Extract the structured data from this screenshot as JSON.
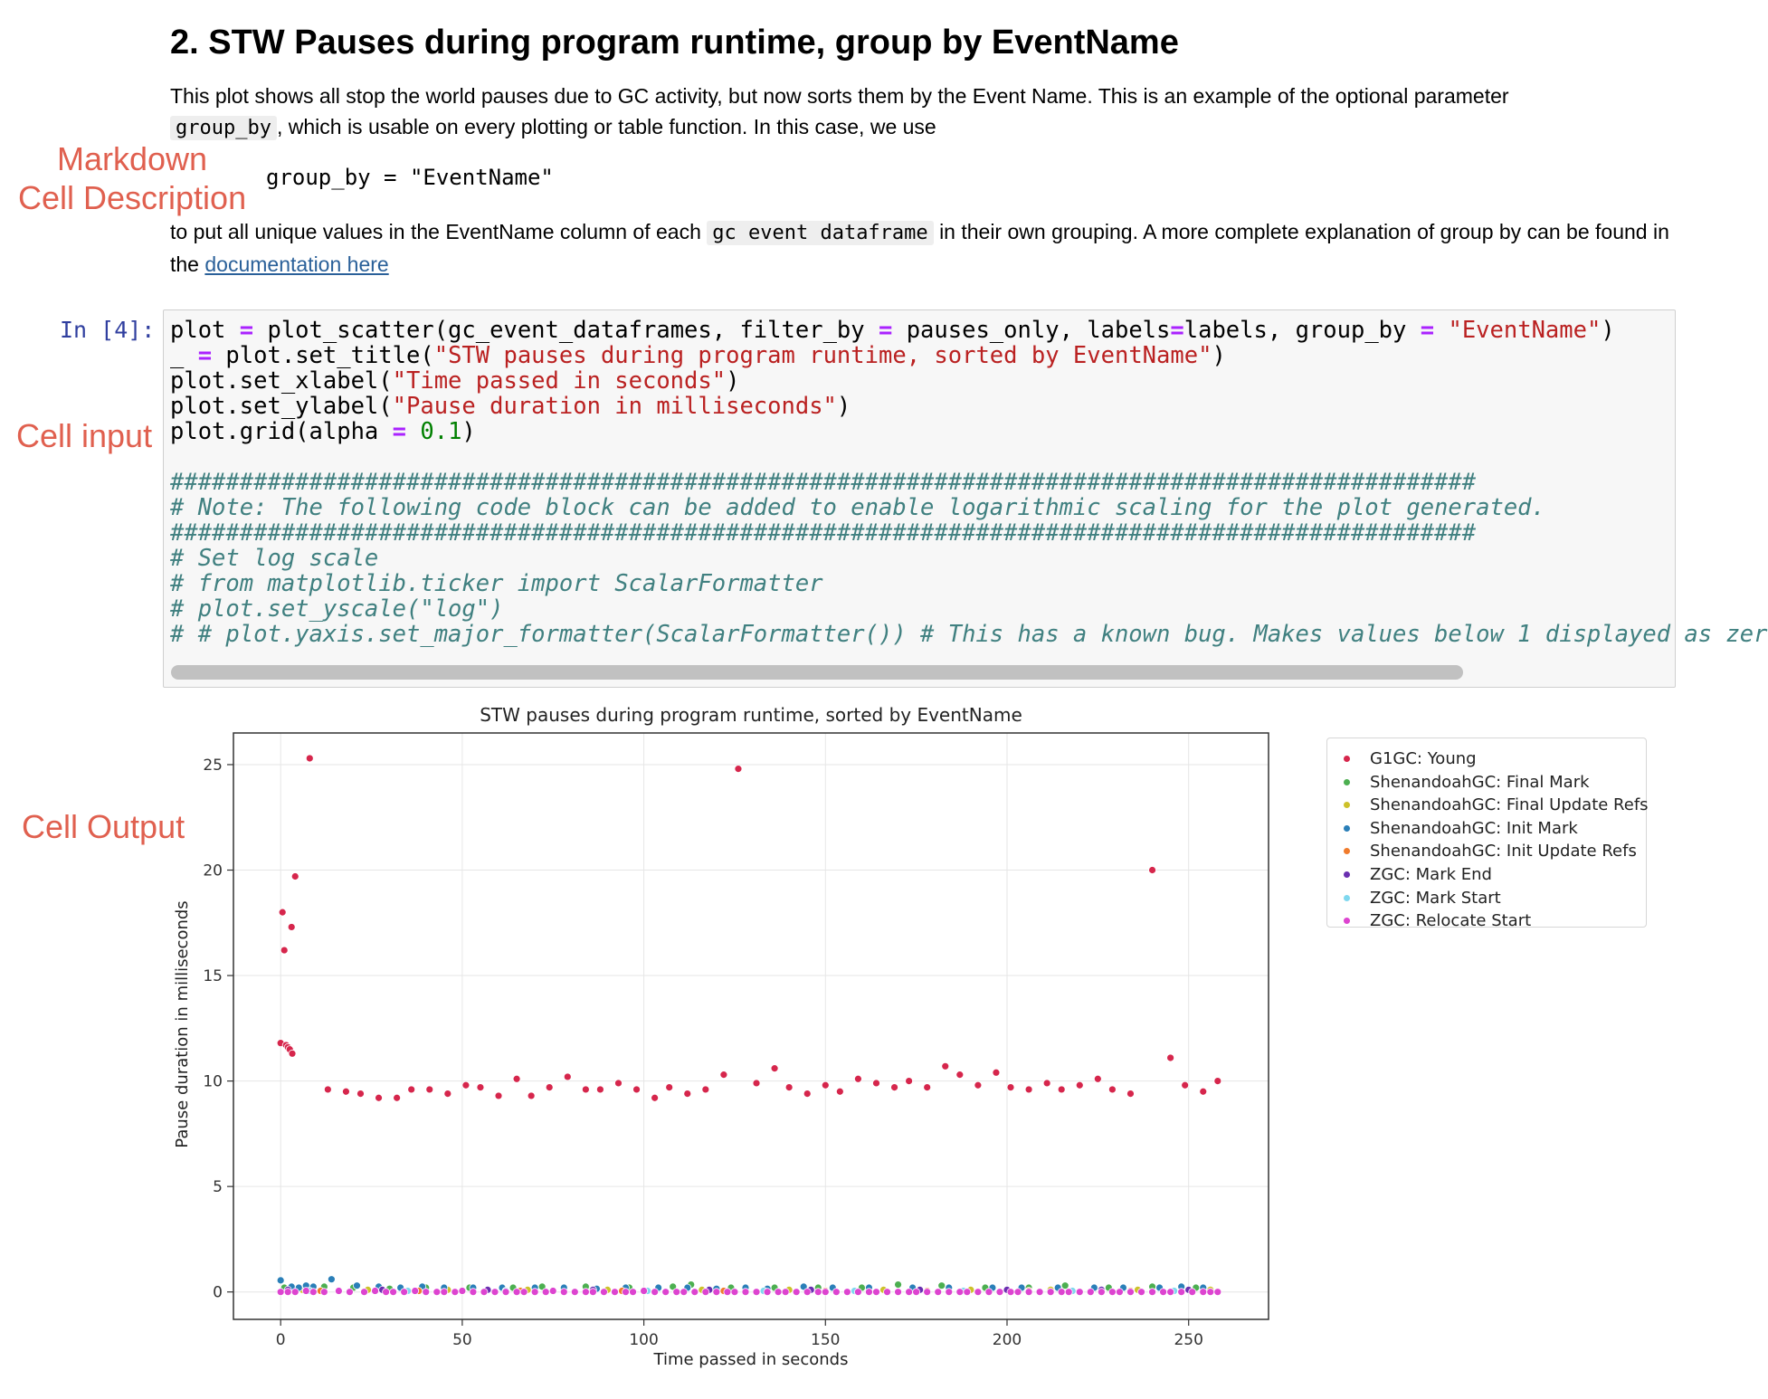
{
  "markdown": {
    "heading": "2. STW Pauses during program runtime, group by EventName",
    "para1_before": "This plot shows all stop the world pauses due to GC activity, but now sorts them by the Event Name. This is an example of the optional parameter",
    "para1_code": "group_by",
    "para1_after": ", which is usable on every plotting or table function. In this case, we use",
    "code_line": "group_by = \"EventName\"",
    "para2_before": "to put all unique values in the EventName column of each",
    "para2_code": "gc event dataframe",
    "para2_after": "in their own grouping. A more complete explanation of group by can be found in the",
    "link_text": "documentation here"
  },
  "annotations": {
    "markdown_line1": "Markdown",
    "markdown_line2": "Cell Description",
    "cell_input": "Cell input",
    "cell_output": "Cell Output"
  },
  "cell": {
    "prompt": "In [4]:",
    "code": {
      "l1_a": "plot ",
      "l1_op1": "=",
      "l1_b": " plot_scatter(gc_event_dataframes, filter_by ",
      "l1_op2": "=",
      "l1_c": " pauses_only, labels",
      "l1_op3": "=",
      "l1_d": "labels, group_by ",
      "l1_op4": "=",
      "l1_e": " ",
      "l1_str": "\"EventName\"",
      "l1_f": ")",
      "l2_a": "_ ",
      "l2_op": "=",
      "l2_b": " plot.set_title(",
      "l2_str": "\"STW pauses during program runtime, sorted by EventName\"",
      "l2_c": ")",
      "l3_a": "plot.set_xlabel(",
      "l3_str": "\"Time passed in seconds\"",
      "l3_b": ")",
      "l4_a": "plot.set_ylabel(",
      "l4_str": "\"Pause duration in milliseconds\"",
      "l4_b": ")",
      "l5_a": "plot.grid(alpha ",
      "l5_op": "=",
      "l5_b": " ",
      "l5_num": "0.1",
      "l5_c": ")",
      "l7": "##############################################################################################",
      "l8": "# Note: The following code block can be added to enable logarithmic scaling for the plot generated.",
      "l9": "##############################################################################################",
      "l10": "# Set log scale",
      "l11": "# from matplotlib.ticker import ScalarFormatter",
      "l12": "# plot.set_yscale(\"log\")",
      "l13": "# # plot.yaxis.set_major_formatter(ScalarFormatter()) # This has a known bug. Makes values below 1 displayed as zer"
    }
  },
  "chart_data": {
    "type": "scatter",
    "title": "STW pauses during program runtime, sorted by EventName",
    "xlabel": "Time passed in seconds",
    "ylabel": "Pause duration in milliseconds",
    "xlim": [
      -13,
      272
    ],
    "ylim": [
      -1.3,
      26.5
    ],
    "xticks": [
      0,
      50,
      100,
      150,
      200,
      250
    ],
    "yticks": [
      0,
      5,
      10,
      15,
      20,
      25
    ],
    "grid": true,
    "legend_position": "outside-right",
    "series": [
      {
        "name": "G1GC: Young",
        "color": "#d6264c",
        "points": [
          [
            0,
            11.8
          ],
          [
            0.5,
            18
          ],
          [
            1,
            16.2
          ],
          [
            1.5,
            11.7
          ],
          [
            2,
            11.6
          ],
          [
            2.5,
            11.5
          ],
          [
            3,
            17.3
          ],
          [
            3.2,
            11.3
          ],
          [
            4,
            19.7
          ],
          [
            8,
            25.3
          ],
          [
            13,
            9.6
          ],
          [
            18,
            9.5
          ],
          [
            22,
            9.4
          ],
          [
            27,
            9.2
          ],
          [
            32,
            9.2
          ],
          [
            36,
            9.6
          ],
          [
            41,
            9.6
          ],
          [
            46,
            9.4
          ],
          [
            51,
            9.8
          ],
          [
            55,
            9.7
          ],
          [
            60,
            9.3
          ],
          [
            65,
            10.1
          ],
          [
            69,
            9.3
          ],
          [
            74,
            9.7
          ],
          [
            79,
            10.2
          ],
          [
            84,
            9.6
          ],
          [
            88,
            9.6
          ],
          [
            93,
            9.9
          ],
          [
            98,
            9.6
          ],
          [
            103,
            9.2
          ],
          [
            107,
            9.7
          ],
          [
            112,
            9.4
          ],
          [
            117,
            9.6
          ],
          [
            122,
            10.3
          ],
          [
            126,
            24.8
          ],
          [
            131,
            9.9
          ],
          [
            136,
            10.6
          ],
          [
            140,
            9.7
          ],
          [
            145,
            9.4
          ],
          [
            150,
            9.8
          ],
          [
            154,
            9.5
          ],
          [
            159,
            10.1
          ],
          [
            164,
            9.9
          ],
          [
            169,
            9.7
          ],
          [
            173,
            10
          ],
          [
            178,
            9.7
          ],
          [
            183,
            10.7
          ],
          [
            187,
            10.3
          ],
          [
            192,
            9.8
          ],
          [
            197,
            10.4
          ],
          [
            201,
            9.7
          ],
          [
            206,
            9.6
          ],
          [
            211,
            9.9
          ],
          [
            215,
            9.6
          ],
          [
            220,
            9.8
          ],
          [
            225,
            10.1
          ],
          [
            229,
            9.6
          ],
          [
            234,
            9.4
          ],
          [
            240,
            20
          ],
          [
            245,
            11.1
          ],
          [
            249,
            9.8
          ],
          [
            254,
            9.5
          ],
          [
            258,
            10
          ]
        ]
      },
      {
        "name": "ShenandoahGC: Final Mark",
        "color": "#4caf50",
        "points": [
          [
            1,
            0.2
          ],
          [
            12,
            0.25
          ],
          [
            20,
            0.2
          ],
          [
            30,
            0.15
          ],
          [
            40,
            0.2
          ],
          [
            52,
            0.2
          ],
          [
            64,
            0.2
          ],
          [
            72,
            0.25
          ],
          [
            84,
            0.25
          ],
          [
            96,
            0.2
          ],
          [
            108,
            0.25
          ],
          [
            113,
            0.35
          ],
          [
            124,
            0.2
          ],
          [
            136,
            0.2
          ],
          [
            148,
            0.2
          ],
          [
            160,
            0.2
          ],
          [
            170,
            0.35
          ],
          [
            182,
            0.3
          ],
          [
            194,
            0.2
          ],
          [
            206,
            0.2
          ],
          [
            216,
            0.3
          ],
          [
            228,
            0.2
          ],
          [
            240,
            0.25
          ],
          [
            252,
            0.2
          ]
        ]
      },
      {
        "name": "ShenandoahGC: Final Update Refs",
        "color": "#cdc12a",
        "points": [
          [
            6,
            0.1
          ],
          [
            24,
            0.1
          ],
          [
            46,
            0.1
          ],
          [
            68,
            0.1
          ],
          [
            90,
            0.1
          ],
          [
            116,
            0.1
          ],
          [
            140,
            0.1
          ],
          [
            166,
            0.1
          ],
          [
            190,
            0.1
          ],
          [
            212,
            0.1
          ],
          [
            236,
            0.1
          ],
          [
            256,
            0.1
          ]
        ]
      },
      {
        "name": "ShenandoahGC: Init Mark",
        "color": "#2a7fb8",
        "points": [
          [
            0,
            0.55
          ],
          [
            3,
            0.25
          ],
          [
            5,
            0.2
          ],
          [
            7,
            0.3
          ],
          [
            9,
            0.25
          ],
          [
            14,
            0.6
          ],
          [
            21,
            0.3
          ],
          [
            27,
            0.25
          ],
          [
            33,
            0.2
          ],
          [
            39,
            0.25
          ],
          [
            45,
            0.2
          ],
          [
            53,
            0.2
          ],
          [
            61,
            0.2
          ],
          [
            70,
            0.2
          ],
          [
            78,
            0.2
          ],
          [
            87,
            0.15
          ],
          [
            95,
            0.2
          ],
          [
            104,
            0.2
          ],
          [
            112,
            0.2
          ],
          [
            120,
            0.15
          ],
          [
            128,
            0.2
          ],
          [
            134,
            0.15
          ],
          [
            144,
            0.25
          ],
          [
            152,
            0.2
          ],
          [
            162,
            0.2
          ],
          [
            174,
            0.2
          ],
          [
            184,
            0.2
          ],
          [
            196,
            0.2
          ],
          [
            204,
            0.2
          ],
          [
            214,
            0.2
          ],
          [
            224,
            0.2
          ],
          [
            232,
            0.2
          ],
          [
            242,
            0.2
          ],
          [
            248,
            0.25
          ],
          [
            254,
            0.2
          ]
        ]
      },
      {
        "name": "ShenandoahGC: Init Update Refs",
        "color": "#f07b2c",
        "points": [
          [
            11,
            0.05
          ],
          [
            38,
            0.05
          ],
          [
            66,
            0.05
          ],
          [
            94,
            0.05
          ],
          [
            122,
            0.05
          ],
          [
            150,
            0.05
          ],
          [
            178,
            0.05
          ],
          [
            206,
            0.05
          ],
          [
            234,
            0.05
          ]
        ]
      },
      {
        "name": "ZGC: Mark End",
        "color": "#6a2fb0",
        "points": [
          [
            2,
            0.1
          ],
          [
            28,
            0.1
          ],
          [
            57,
            0.1
          ],
          [
            86,
            0.1
          ],
          [
            118,
            0.1
          ],
          [
            146,
            0.1
          ],
          [
            176,
            0.1
          ],
          [
            200,
            0.1
          ],
          [
            226,
            0.1
          ],
          [
            250,
            0.1
          ]
        ]
      },
      {
        "name": "ZGC: Mark Start",
        "color": "#7fd8ef",
        "points": [
          [
            8,
            0.05
          ],
          [
            35,
            0.05
          ],
          [
            62,
            0.05
          ],
          [
            101,
            0.05
          ],
          [
            133,
            0.05
          ],
          [
            158,
            0.05
          ],
          [
            188,
            0.05
          ],
          [
            218,
            0.05
          ],
          [
            246,
            0.05
          ]
        ]
      },
      {
        "name": "ZGC: Relocate Start",
        "color": "#dd44d0",
        "points": [
          [
            0,
            0
          ],
          [
            2,
            0
          ],
          [
            4,
            0
          ],
          [
            7,
            0.05
          ],
          [
            9,
            0
          ],
          [
            12,
            0
          ],
          [
            16,
            0.05
          ],
          [
            19,
            0
          ],
          [
            23,
            0
          ],
          [
            26,
            0.05
          ],
          [
            29,
            0
          ],
          [
            31,
            0
          ],
          [
            34,
            0
          ],
          [
            37,
            0.05
          ],
          [
            40,
            0
          ],
          [
            43,
            0
          ],
          [
            45,
            0
          ],
          [
            48,
            0
          ],
          [
            50,
            0.05
          ],
          [
            53,
            0
          ],
          [
            56,
            0
          ],
          [
            59,
            0
          ],
          [
            62,
            0
          ],
          [
            65,
            0
          ],
          [
            67,
            0
          ],
          [
            70,
            0
          ],
          [
            73,
            0
          ],
          [
            75,
            0.05
          ],
          [
            78,
            0
          ],
          [
            81,
            0
          ],
          [
            84,
            0
          ],
          [
            86,
            0
          ],
          [
            89,
            0
          ],
          [
            92,
            0
          ],
          [
            95,
            0
          ],
          [
            97,
            0
          ],
          [
            100,
            0.05
          ],
          [
            103,
            0
          ],
          [
            106,
            0
          ],
          [
            109,
            0
          ],
          [
            111,
            0
          ],
          [
            114,
            0
          ],
          [
            117,
            0
          ],
          [
            120,
            0
          ],
          [
            123,
            0
          ],
          [
            125,
            0
          ],
          [
            128,
            0
          ],
          [
            131,
            0
          ],
          [
            134,
            0
          ],
          [
            137,
            0
          ],
          [
            139,
            0
          ],
          [
            142,
            0
          ],
          [
            145,
            0
          ],
          [
            148,
            0
          ],
          [
            150,
            0
          ],
          [
            153,
            0
          ],
          [
            156,
            0
          ],
          [
            159,
            0
          ],
          [
            162,
            0
          ],
          [
            164,
            0
          ],
          [
            167,
            0
          ],
          [
            170,
            0
          ],
          [
            173,
            0
          ],
          [
            175,
            0
          ],
          [
            178,
            0
          ],
          [
            181,
            0
          ],
          [
            184,
            0
          ],
          [
            187,
            0
          ],
          [
            189,
            0
          ],
          [
            192,
            0
          ],
          [
            195,
            0
          ],
          [
            198,
            0
          ],
          [
            201,
            0
          ],
          [
            203,
            0
          ],
          [
            206,
            0
          ],
          [
            209,
            0
          ],
          [
            212,
            0
          ],
          [
            215,
            0
          ],
          [
            217,
            0
          ],
          [
            220,
            0
          ],
          [
            223,
            0
          ],
          [
            226,
            0
          ],
          [
            229,
            0
          ],
          [
            231,
            0
          ],
          [
            234,
            0
          ],
          [
            237,
            0
          ],
          [
            240,
            0
          ],
          [
            243,
            0
          ],
          [
            245,
            0
          ],
          [
            248,
            0
          ],
          [
            251,
            0
          ],
          [
            254,
            0
          ],
          [
            256,
            0
          ],
          [
            258,
            0
          ]
        ]
      }
    ]
  }
}
